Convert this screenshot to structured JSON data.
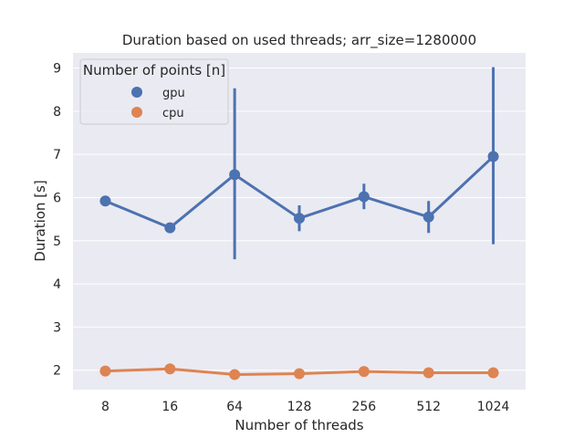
{
  "chart_data": {
    "type": "line",
    "title": "Duration based on used threads; arr_size=1280000",
    "xlabel": "Number of threads",
    "ylabel": "Duration [s]",
    "categories": [
      "8",
      "16",
      "64",
      "128",
      "256",
      "512",
      "1024"
    ],
    "ylim": [
      1.55,
      9.35
    ],
    "yticks": [
      2,
      3,
      4,
      5,
      6,
      7,
      8,
      9
    ],
    "grid": true,
    "legend": {
      "title": "Number of points [n]",
      "placement": "top-left"
    },
    "series": [
      {
        "name": "gpu",
        "color": "#4c72b0",
        "values": [
          5.92,
          5.3,
          6.53,
          5.52,
          6.02,
          5.55,
          6.95
        ],
        "err_low": [
          5.9,
          5.25,
          4.57,
          5.22,
          5.73,
          5.18,
          4.92
        ],
        "err_high": [
          5.95,
          5.35,
          8.53,
          5.82,
          6.32,
          5.92,
          9.02
        ]
      },
      {
        "name": "cpu",
        "color": "#dd8452",
        "values": [
          1.98,
          2.03,
          1.9,
          1.92,
          1.97,
          1.94,
          1.94
        ],
        "err_low": [
          1.96,
          1.98,
          1.88,
          1.9,
          1.95,
          1.92,
          1.92
        ],
        "err_high": [
          2.0,
          2.12,
          1.92,
          1.94,
          1.99,
          1.96,
          1.96
        ]
      }
    ]
  }
}
